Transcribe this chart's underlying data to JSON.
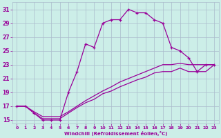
{
  "xlabel": "Windchill (Refroidissement éolien,°C)",
  "bg_color": "#cceee8",
  "grid_color": "#aabbcc",
  "line_color": "#990099",
  "xlim": [
    -0.5,
    23.5
  ],
  "ylim": [
    14.5,
    32
  ],
  "xticks": [
    0,
    1,
    2,
    3,
    4,
    5,
    6,
    7,
    8,
    9,
    10,
    11,
    12,
    13,
    14,
    15,
    16,
    17,
    18,
    19,
    20,
    21,
    22,
    23
  ],
  "yticks": [
    15,
    17,
    19,
    21,
    23,
    25,
    27,
    29,
    31
  ],
  "curve1_x": [
    0,
    1,
    2,
    3,
    4,
    5,
    6,
    7,
    8,
    9,
    10,
    11,
    12,
    13,
    14,
    15,
    16,
    17,
    18,
    19,
    20,
    21,
    22,
    23
  ],
  "curve1_y": [
    17,
    17,
    16,
    15,
    15,
    15,
    19,
    22,
    26,
    25.5,
    29,
    29.5,
    29.5,
    31,
    30.5,
    30.5,
    29.5,
    29,
    25.5,
    25,
    24,
    22,
    23,
    23
  ],
  "curve2_x": [
    0,
    1,
    2,
    3,
    4,
    5,
    6,
    7,
    8,
    9,
    10,
    11,
    12,
    13,
    14,
    15,
    16,
    17,
    18,
    19,
    20,
    21,
    22,
    23
  ],
  "curve2_y": [
    17,
    17,
    16.2,
    15.5,
    15.5,
    15.5,
    16.2,
    17,
    17.8,
    18.5,
    19.2,
    19.8,
    20.5,
    21,
    21.5,
    22,
    22.5,
    23,
    23,
    23.2,
    23,
    23,
    23,
    23
  ],
  "curve3_x": [
    0,
    1,
    2,
    3,
    4,
    5,
    6,
    7,
    8,
    9,
    10,
    11,
    12,
    13,
    14,
    15,
    16,
    17,
    18,
    19,
    20,
    21,
    22,
    23
  ],
  "curve3_y": [
    17,
    17,
    16,
    15.2,
    15.2,
    15.2,
    16,
    16.8,
    17.5,
    18,
    18.8,
    19.2,
    19.8,
    20.3,
    20.8,
    21.2,
    21.8,
    22,
    22,
    22.5,
    22,
    22,
    22,
    23
  ]
}
